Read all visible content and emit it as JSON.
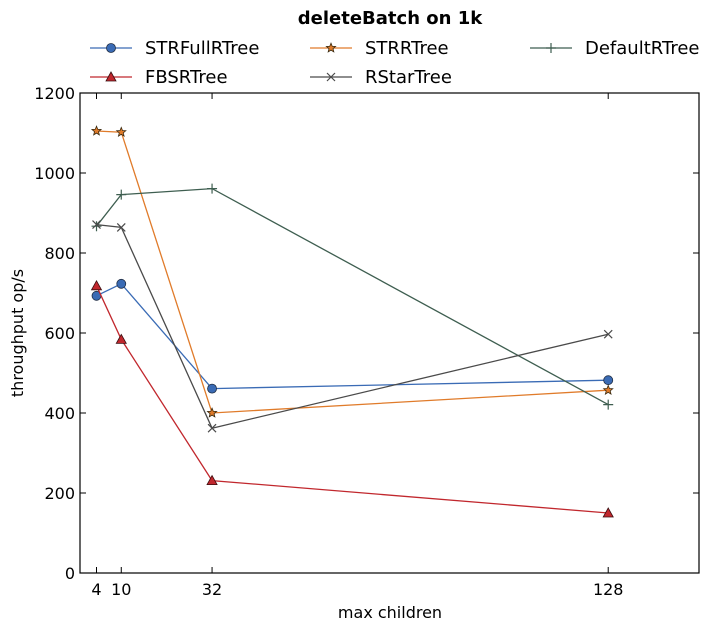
{
  "chart_data": {
    "type": "line",
    "title": "deleteBatch on 1k",
    "xlabel": "max children",
    "ylabel": "throughput op/s",
    "xlim": [
      0,
      150
    ],
    "ylim": [
      0,
      1200
    ],
    "x_ticks": [
      4,
      10,
      32,
      128
    ],
    "y_ticks": [
      0,
      200,
      400,
      600,
      800,
      1000,
      1200
    ],
    "grid": false,
    "legend_position": "top",
    "series": [
      {
        "name": "STRFullRTree",
        "color": "#3a6bb5",
        "marker": "circle",
        "x": [
          4,
          10,
          32,
          128
        ],
        "y": [
          693,
          723,
          461,
          482
        ]
      },
      {
        "name": "STRRTree",
        "color": "#e07b2a",
        "marker": "star",
        "x": [
          4,
          10,
          32,
          128
        ],
        "y": [
          1105,
          1102,
          400,
          457
        ]
      },
      {
        "name": "DefaultRTree",
        "color": "#3e5e50",
        "marker": "plus",
        "x": [
          4,
          10,
          32,
          128
        ],
        "y": [
          867,
          946,
          961,
          421
        ]
      },
      {
        "name": "FBSRTree",
        "color": "#c1272d",
        "marker": "triangle",
        "x": [
          4,
          10,
          32,
          128
        ],
        "y": [
          718,
          584,
          231,
          150
        ]
      },
      {
        "name": "RStarTree",
        "color": "#4a4a4a",
        "marker": "x",
        "x": [
          4,
          10,
          32,
          128
        ],
        "y": [
          871,
          864,
          362,
          597
        ]
      }
    ]
  }
}
